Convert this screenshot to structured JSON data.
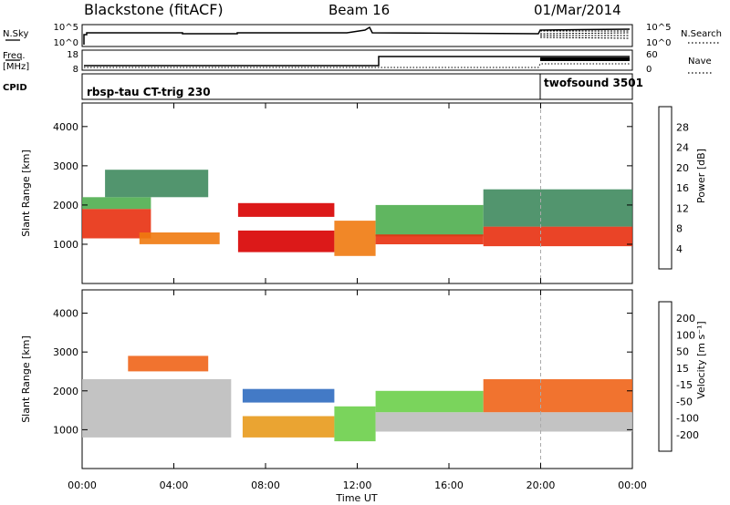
{
  "header": {
    "station": "Blackstone (fitACF)",
    "beam": "Beam 16",
    "date": "01/Mar/2014"
  },
  "strips": {
    "nsky": {
      "label": "N.Sky",
      "ticks": [
        "10^5",
        "10^0"
      ]
    },
    "nsearch": {
      "label": "N.Search",
      "ticks": [
        "10^5",
        "10^0"
      ]
    },
    "freq": {
      "label": "Freq.",
      "unit": "[MHz]",
      "ticks": [
        "18",
        "8"
      ]
    },
    "nave": {
      "label": "Nave",
      "ticks": [
        "60",
        "0"
      ]
    },
    "cpid": {
      "label": "CPID",
      "mode1": "rbsp-tau CT-trig 230",
      "mode2": "twofsound 3501"
    }
  },
  "colors": {
    "power": [
      "#1a1acc",
      "#2a5aa8",
      "#3f8a5e",
      "#4fae4f",
      "#e8b21e",
      "#f07a10",
      "#e83010",
      "#d80000"
    ],
    "velocity": [
      "#2438b4",
      "#2f6cc0",
      "#2f9a40",
      "#6ccf4a",
      "#bdbdbd",
      "#e89a1c",
      "#f06418",
      "#e83018",
      "#d80000"
    ]
  },
  "chart_data": [
    {
      "type": "heatmap",
      "name": "power",
      "x_label": "",
      "ylabel": "Slant Range [km]",
      "colorbar_label": "Power [dB]",
      "colorbar_ticks": [
        "4",
        "8",
        "12",
        "16",
        "20",
        "24",
        "28"
      ],
      "x_ticks": [
        "00:00",
        "04:00",
        "08:00",
        "12:00",
        "16:00",
        "20:00",
        "00:00"
      ],
      "y_ticks": [
        "1000",
        "2000",
        "3000",
        "4000"
      ],
      "ylim": [
        0,
        4600
      ],
      "xlim_hours": [
        0,
        24
      ],
      "mode_change_hour": 20,
      "bands": [
        {
          "t0": 0.0,
          "t1": 3.0,
          "r0": 1150,
          "r1": 1900,
          "level": 6
        },
        {
          "t0": 0.0,
          "t1": 3.0,
          "r0": 1900,
          "r1": 2200,
          "level": 3
        },
        {
          "t0": 1.0,
          "t1": 5.5,
          "r0": 2200,
          "r1": 2900,
          "level": 2
        },
        {
          "t0": 2.5,
          "t1": 6.0,
          "r0": 1000,
          "r1": 1300,
          "level": 5
        },
        {
          "t0": 6.8,
          "t1": 11.0,
          "r0": 1700,
          "r1": 2050,
          "level": 7
        },
        {
          "t0": 6.8,
          "t1": 11.0,
          "r0": 800,
          "r1": 1350,
          "level": 7
        },
        {
          "t0": 11.0,
          "t1": 12.8,
          "r0": 700,
          "r1": 1600,
          "level": 5
        },
        {
          "t0": 12.8,
          "t1": 17.5,
          "r0": 1200,
          "r1": 2000,
          "level": 3
        },
        {
          "t0": 12.8,
          "t1": 17.5,
          "r0": 1000,
          "r1": 1250,
          "level": 6
        },
        {
          "t0": 17.5,
          "t1": 24.0,
          "r0": 950,
          "r1": 1450,
          "level": 6
        },
        {
          "t0": 17.5,
          "t1": 24.0,
          "r0": 1450,
          "r1": 2400,
          "level": 2
        }
      ]
    },
    {
      "type": "heatmap",
      "name": "velocity",
      "x_label": "Time UT",
      "ylabel": "Slant Range [km]",
      "colorbar_label": "Velocity [m s⁻¹]",
      "colorbar_ticks": [
        "-200",
        "-100",
        "-50",
        "-15",
        "15",
        "50",
        "100",
        "200"
      ],
      "x_ticks": [
        "00:00",
        "04:00",
        "08:00",
        "12:00",
        "16:00",
        "20:00",
        "00:00"
      ],
      "y_ticks": [
        "1000",
        "2000",
        "3000",
        "4000"
      ],
      "ylim": [
        0,
        4600
      ],
      "xlim_hours": [
        0,
        24
      ],
      "mode_change_hour": 20,
      "bands": [
        {
          "t0": 0.0,
          "t1": 6.5,
          "r0": 800,
          "r1": 2300,
          "level": 4
        },
        {
          "t0": 2.0,
          "t1": 5.5,
          "r0": 2500,
          "r1": 2900,
          "level": 6
        },
        {
          "t0": 7.0,
          "t1": 11.0,
          "r0": 1700,
          "r1": 2050,
          "level": 1
        },
        {
          "t0": 7.0,
          "t1": 11.0,
          "r0": 800,
          "r1": 1350,
          "level": 5
        },
        {
          "t0": 11.0,
          "t1": 12.8,
          "r0": 700,
          "r1": 1600,
          "level": 3
        },
        {
          "t0": 12.8,
          "t1": 24.0,
          "r0": 950,
          "r1": 1450,
          "level": 4
        },
        {
          "t0": 12.8,
          "t1": 17.5,
          "r0": 1450,
          "r1": 2000,
          "level": 3
        },
        {
          "t0": 17.5,
          "t1": 24.0,
          "r0": 1450,
          "r1": 2300,
          "level": 6
        }
      ]
    }
  ]
}
